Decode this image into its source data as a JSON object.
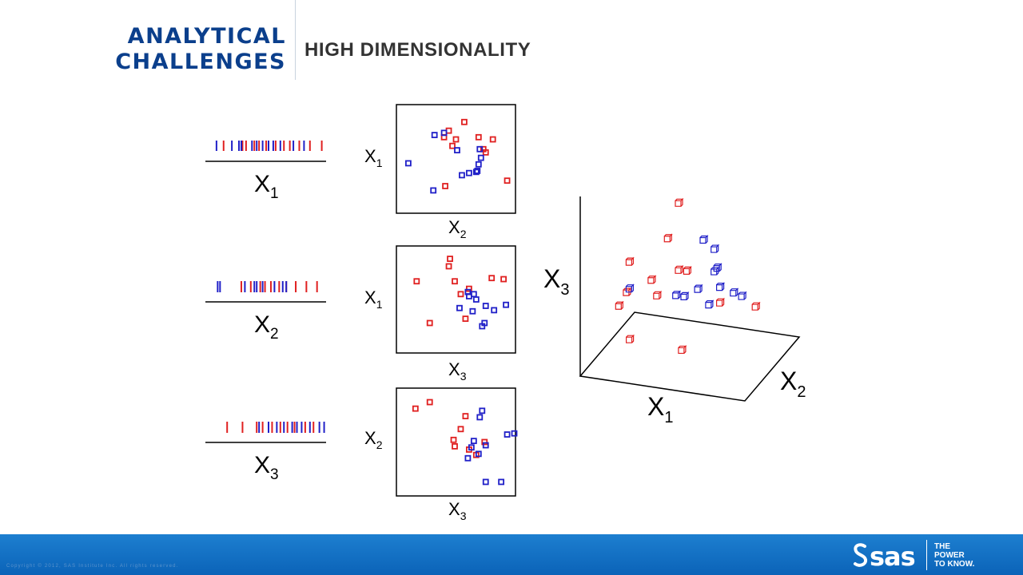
{
  "header": {
    "title_line1": "ANALYTICAL",
    "title_line2": "CHALLENGES",
    "subtitle": "HIGH DIMENSIONALITY"
  },
  "colors": {
    "title": "#0b3f8c",
    "red_points": "#e02020",
    "blue_points": "#2020c8",
    "footer": "#0b63b8"
  },
  "axis_labels": {
    "x1": {
      "base": "X",
      "sub": "1"
    },
    "x2": {
      "base": "X",
      "sub": "2"
    },
    "x3": {
      "base": "X",
      "sub": "3"
    }
  },
  "chart_data": [
    {
      "type": "strip",
      "axis": "x1",
      "red": [
        0.12,
        0.28,
        0.31,
        0.38,
        0.42,
        0.48,
        0.56,
        0.63,
        0.68,
        0.76,
        0.85,
        0.95
      ],
      "blue": [
        0.06,
        0.19,
        0.25,
        0.27,
        0.36,
        0.4,
        0.45,
        0.5,
        0.54,
        0.6,
        0.71,
        0.8
      ]
    },
    {
      "type": "strip",
      "axis": "x2",
      "red": [
        0.27,
        0.35,
        0.43,
        0.47,
        0.52,
        0.59,
        0.65,
        0.73,
        0.82,
        0.91
      ],
      "blue": [
        0.07,
        0.09,
        0.3,
        0.38,
        0.4,
        0.45,
        0.55,
        0.62,
        0.65
      ]
    },
    {
      "type": "strip",
      "axis": "x3",
      "red": [
        0.15,
        0.28,
        0.4,
        0.45,
        0.53,
        0.6,
        0.66,
        0.72,
        0.81,
        0.88
      ],
      "blue": [
        0.42,
        0.5,
        0.57,
        0.63,
        0.7,
        0.74,
        0.78,
        0.85,
        0.93,
        0.97
      ]
    },
    {
      "type": "scatter",
      "xlabel": "x2",
      "ylabel": "x1",
      "red": [
        [
          0.47,
          0.62
        ],
        [
          0.57,
          0.84
        ],
        [
          0.44,
          0.76
        ],
        [
          0.4,
          0.7
        ],
        [
          0.5,
          0.68
        ],
        [
          0.69,
          0.7
        ],
        [
          0.81,
          0.68
        ],
        [
          0.73,
          0.59
        ],
        [
          0.75,
          0.56
        ],
        [
          0.93,
          0.3
        ],
        [
          0.41,
          0.25
        ]
      ],
      "blue": [
        [
          0.32,
          0.72
        ],
        [
          0.4,
          0.74
        ],
        [
          0.51,
          0.58
        ],
        [
          0.7,
          0.59
        ],
        [
          0.71,
          0.51
        ],
        [
          0.69,
          0.45
        ],
        [
          0.68,
          0.39
        ],
        [
          0.61,
          0.37
        ],
        [
          0.67,
          0.38
        ],
        [
          0.55,
          0.35
        ],
        [
          0.31,
          0.21
        ],
        [
          0.1,
          0.46
        ]
      ]
    },
    {
      "type": "scatter",
      "xlabel": "x3",
      "ylabel": "x1",
      "red": [
        [
          0.44,
          0.81
        ],
        [
          0.45,
          0.88
        ],
        [
          0.17,
          0.67
        ],
        [
          0.49,
          0.67
        ],
        [
          0.61,
          0.6
        ],
        [
          0.8,
          0.7
        ],
        [
          0.9,
          0.69
        ],
        [
          0.54,
          0.55
        ],
        [
          0.58,
          0.32
        ],
        [
          0.28,
          0.28
        ]
      ],
      "blue": [
        [
          0.65,
          0.55
        ],
        [
          0.6,
          0.57
        ],
        [
          0.61,
          0.53
        ],
        [
          0.67,
          0.5
        ],
        [
          0.75,
          0.44
        ],
        [
          0.82,
          0.4
        ],
        [
          0.53,
          0.42
        ],
        [
          0.64,
          0.39
        ],
        [
          0.92,
          0.45
        ],
        [
          0.74,
          0.28
        ],
        [
          0.72,
          0.25
        ]
      ]
    },
    {
      "type": "scatter",
      "xlabel": "x3",
      "ylabel": "x2",
      "red": [
        [
          0.16,
          0.81
        ],
        [
          0.28,
          0.87
        ],
        [
          0.58,
          0.74
        ],
        [
          0.54,
          0.62
        ],
        [
          0.48,
          0.52
        ],
        [
          0.49,
          0.46
        ],
        [
          0.61,
          0.43
        ],
        [
          0.67,
          0.38
        ],
        [
          0.74,
          0.5
        ]
      ],
      "blue": [
        [
          0.7,
          0.73
        ],
        [
          0.72,
          0.79
        ],
        [
          0.93,
          0.57
        ],
        [
          0.99,
          0.58
        ],
        [
          0.65,
          0.51
        ],
        [
          0.75,
          0.47
        ],
        [
          0.63,
          0.45
        ],
        [
          0.6,
          0.35
        ],
        [
          0.69,
          0.39
        ],
        [
          0.75,
          0.13
        ],
        [
          0.88,
          0.13
        ]
      ]
    },
    {
      "type": "scatter3d",
      "xlabel": "x1",
      "ylabel": "x2",
      "zlabel": "x3",
      "red": [
        [
          0.3,
          0.9,
          0.55
        ],
        [
          0.1,
          0.6,
          0.35
        ],
        [
          0.25,
          0.55,
          0.3
        ],
        [
          0.3,
          0.5,
          0.25
        ],
        [
          0.55,
          0.2,
          0.12
        ],
        [
          0.25,
          0.85,
          0.4
        ],
        [
          0.4,
          0.75,
          0.3
        ],
        [
          0.3,
          0.9,
          0.25
        ],
        [
          0.05,
          0.7,
          0.18
        ],
        [
          0.02,
          0.65,
          0.13
        ],
        [
          0.6,
          0.75,
          0.18
        ],
        [
          0.8,
          0.8,
          0.17
        ],
        [
          0.2,
          0.3,
          0.1
        ]
      ],
      "blue": [
        [
          0.5,
          0.75,
          0.45
        ],
        [
          0.55,
          0.8,
          0.4
        ],
        [
          0.6,
          0.7,
          0.35
        ],
        [
          0.55,
          0.8,
          0.3
        ],
        [
          0.6,
          0.75,
          0.25
        ],
        [
          0.7,
          0.7,
          0.25
        ],
        [
          0.1,
          0.6,
          0.23
        ],
        [
          0.4,
          0.7,
          0.2
        ],
        [
          0.35,
          0.7,
          0.2
        ],
        [
          0.55,
          0.7,
          0.18
        ],
        [
          0.75,
          0.7,
          0.24
        ],
        [
          0.45,
          0.8,
          0.21
        ]
      ]
    }
  ],
  "footer": {
    "copyright": "Copyright © 2012, SAS Institute Inc. All rights reserved.",
    "logo_word": "sas",
    "tagline": [
      "THE",
      "POWER",
      "TO KNOW."
    ]
  }
}
